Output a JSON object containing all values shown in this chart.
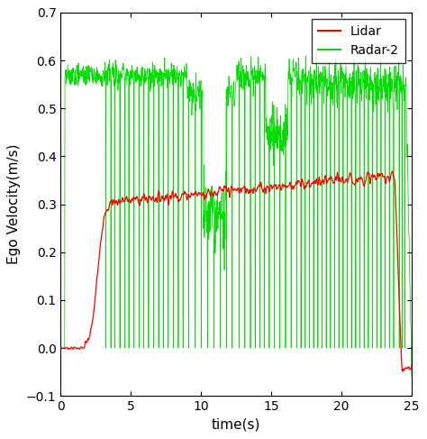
{
  "title": "",
  "xlabel": "time(s)",
  "ylabel": "Ego Velocity(m/s)",
  "xlim": [
    0,
    25
  ],
  "ylim": [
    -0.1,
    0.7
  ],
  "yticks": [
    -0.1,
    0.0,
    0.1,
    0.2,
    0.3,
    0.4,
    0.5,
    0.6,
    0.7
  ],
  "xticks": [
    0,
    5,
    10,
    15,
    20,
    25
  ],
  "lidar_color": "#ff0000",
  "radar_color": "#00dd00",
  "legend_labels": [
    "Lidar",
    "Radar-2"
  ],
  "figsize": [
    4.74,
    4.87
  ],
  "dpi": 100,
  "background_color": "#ffffff"
}
